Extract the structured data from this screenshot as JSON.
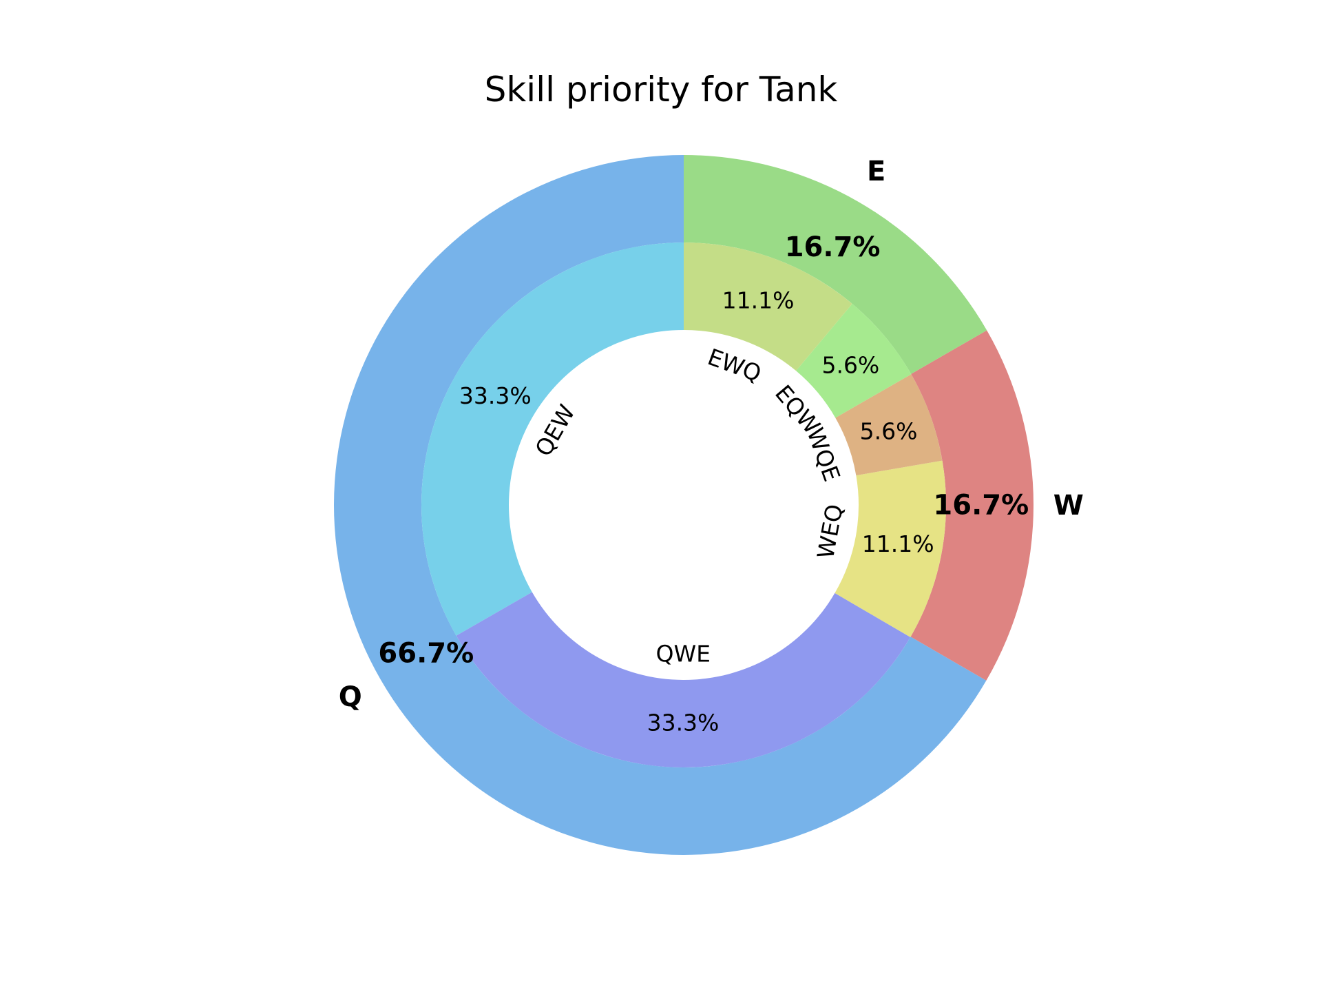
{
  "chart_data": {
    "type": "pie",
    "title": "Skill priority for Tank",
    "outer": {
      "categories": [
        "Q",
        "W",
        "E"
      ],
      "values": [
        66.7,
        16.7,
        16.7
      ],
      "labels": [
        "66.7%",
        "16.7%",
        "16.7%"
      ],
      "colors": [
        "#77b3ea",
        "#de8482",
        "#9adb87"
      ]
    },
    "inner": {
      "categories": [
        "QEW",
        "QWE",
        "WEQ",
        "WQE",
        "EQW",
        "EWQ"
      ],
      "values": [
        33.3,
        33.3,
        11.1,
        5.6,
        5.6,
        11.1
      ],
      "labels": [
        "33.3%",
        "33.3%",
        "11.1%",
        "5.6%",
        "5.6%",
        "11.1%"
      ],
      "colors": [
        "#77d0ea",
        "#8f99ef",
        "#e6e385",
        "#deb283",
        "#a6ea8f",
        "#c4dd87"
      ]
    }
  }
}
